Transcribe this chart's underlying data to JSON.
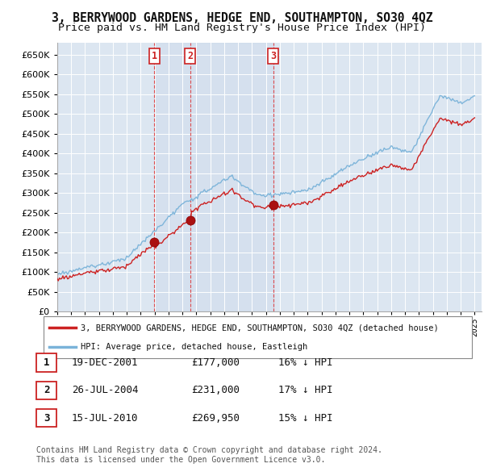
{
  "title": "3, BERRYWOOD GARDENS, HEDGE END, SOUTHAMPTON, SO30 4QZ",
  "subtitle": "Price paid vs. HM Land Registry's House Price Index (HPI)",
  "yticks": [
    0,
    50000,
    100000,
    150000,
    200000,
    250000,
    300000,
    350000,
    400000,
    450000,
    500000,
    550000,
    600000,
    650000
  ],
  "xlim_start": 1995.0,
  "xlim_end": 2025.5,
  "background_color": "#ffffff",
  "plot_bg_color": "#dce6f1",
  "grid_color": "#ffffff",
  "hpi_color": "#7ab3d9",
  "price_color": "#cc2222",
  "sale_marker_color": "#aa1111",
  "vline_color": "#dd3333",
  "transactions": [
    {
      "num": 1,
      "date_x": 2001.97,
      "price": 177000,
      "label": "1"
    },
    {
      "num": 2,
      "date_x": 2004.57,
      "price": 231000,
      "label": "2"
    },
    {
      "num": 3,
      "date_x": 2010.54,
      "price": 269950,
      "label": "3"
    }
  ],
  "legend_line1": "3, BERRYWOOD GARDENS, HEDGE END, SOUTHAMPTON, SO30 4QZ (detached house)",
  "legend_line2": "HPI: Average price, detached house, Eastleigh",
  "table_rows": [
    {
      "num": "1",
      "date": "19-DEC-2001",
      "price": "£177,000",
      "hpi": "16% ↓ HPI"
    },
    {
      "num": "2",
      "date": "26-JUL-2004",
      "price": "£231,000",
      "hpi": "17% ↓ HPI"
    },
    {
      "num": "3",
      "date": "15-JUL-2010",
      "price": "£269,950",
      "hpi": "15% ↓ HPI"
    }
  ],
  "footer": "Contains HM Land Registry data © Crown copyright and database right 2024.\nThis data is licensed under the Open Government Licence v3.0.",
  "title_fontsize": 10.5,
  "subtitle_fontsize": 9.5
}
